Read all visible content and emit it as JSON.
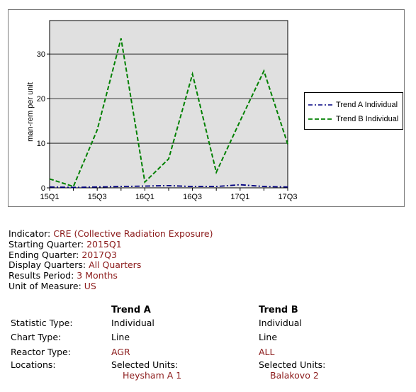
{
  "chart_data": {
    "type": "line",
    "categories": [
      "15Q1",
      "15Q2",
      "15Q3",
      "15Q4",
      "16Q1",
      "16Q2",
      "16Q3",
      "16Q4",
      "17Q1",
      "17Q2",
      "17Q3"
    ],
    "tick_labels": [
      "15Q1",
      "15Q3",
      "16Q1",
      "16Q3",
      "17Q1",
      "17Q3"
    ],
    "y_ticks": [
      "0",
      "10",
      "20",
      "30"
    ],
    "ylabel": "man-rem per unit",
    "xlabel": "",
    "ylim": [
      0,
      37.5
    ],
    "grid": true,
    "legend_position": "right",
    "plot_background": "#e0e0e0",
    "series": [
      {
        "name": "Trend A Individual",
        "color": "#000080",
        "dash": "dash-dot",
        "values": [
          0.2,
          0.1,
          0.2,
          0.3,
          0.4,
          0.5,
          0.3,
          0.3,
          0.7,
          0.3,
          0.2
        ]
      },
      {
        "name": "Trend B Individual",
        "color": "#008000",
        "dash": "dashed",
        "values": [
          2.0,
          0.3,
          13.0,
          33.5,
          1.3,
          6.5,
          25.5,
          3.5,
          15.0,
          26.2,
          9.8
        ]
      }
    ]
  },
  "info": {
    "indicator": {
      "label": "Indicator:",
      "value": "CRE (Collective Radiation Exposure)"
    },
    "starting_quarter": {
      "label": "Starting Quarter:",
      "value": "2015Q1"
    },
    "ending_quarter": {
      "label": "Ending Quarter:",
      "value": "2017Q3"
    },
    "display_quarters": {
      "label": "Display Quarters:",
      "value": "All Quarters"
    },
    "results_period": {
      "label": "Results Period:",
      "value": "3 Months"
    },
    "unit_of_measure": {
      "label": "Unit of Measure:",
      "value": "US"
    }
  },
  "trends": {
    "header_a": "Trend A",
    "header_b": "Trend B",
    "rows": {
      "statistic": {
        "label": "Statistic Type:",
        "a": "Individual",
        "b": "Individual"
      },
      "chart": {
        "label": "Chart Type:",
        "a": "Line",
        "b": "Line"
      },
      "reactor": {
        "label": "Reactor Type:",
        "a": "AGR",
        "b": "ALL"
      },
      "locations": {
        "label": "Locations:",
        "a": "Selected Units:",
        "b": "Selected Units:"
      },
      "units": {
        "a": "Heysham A 1",
        "b": "Balakovo 2"
      }
    }
  }
}
